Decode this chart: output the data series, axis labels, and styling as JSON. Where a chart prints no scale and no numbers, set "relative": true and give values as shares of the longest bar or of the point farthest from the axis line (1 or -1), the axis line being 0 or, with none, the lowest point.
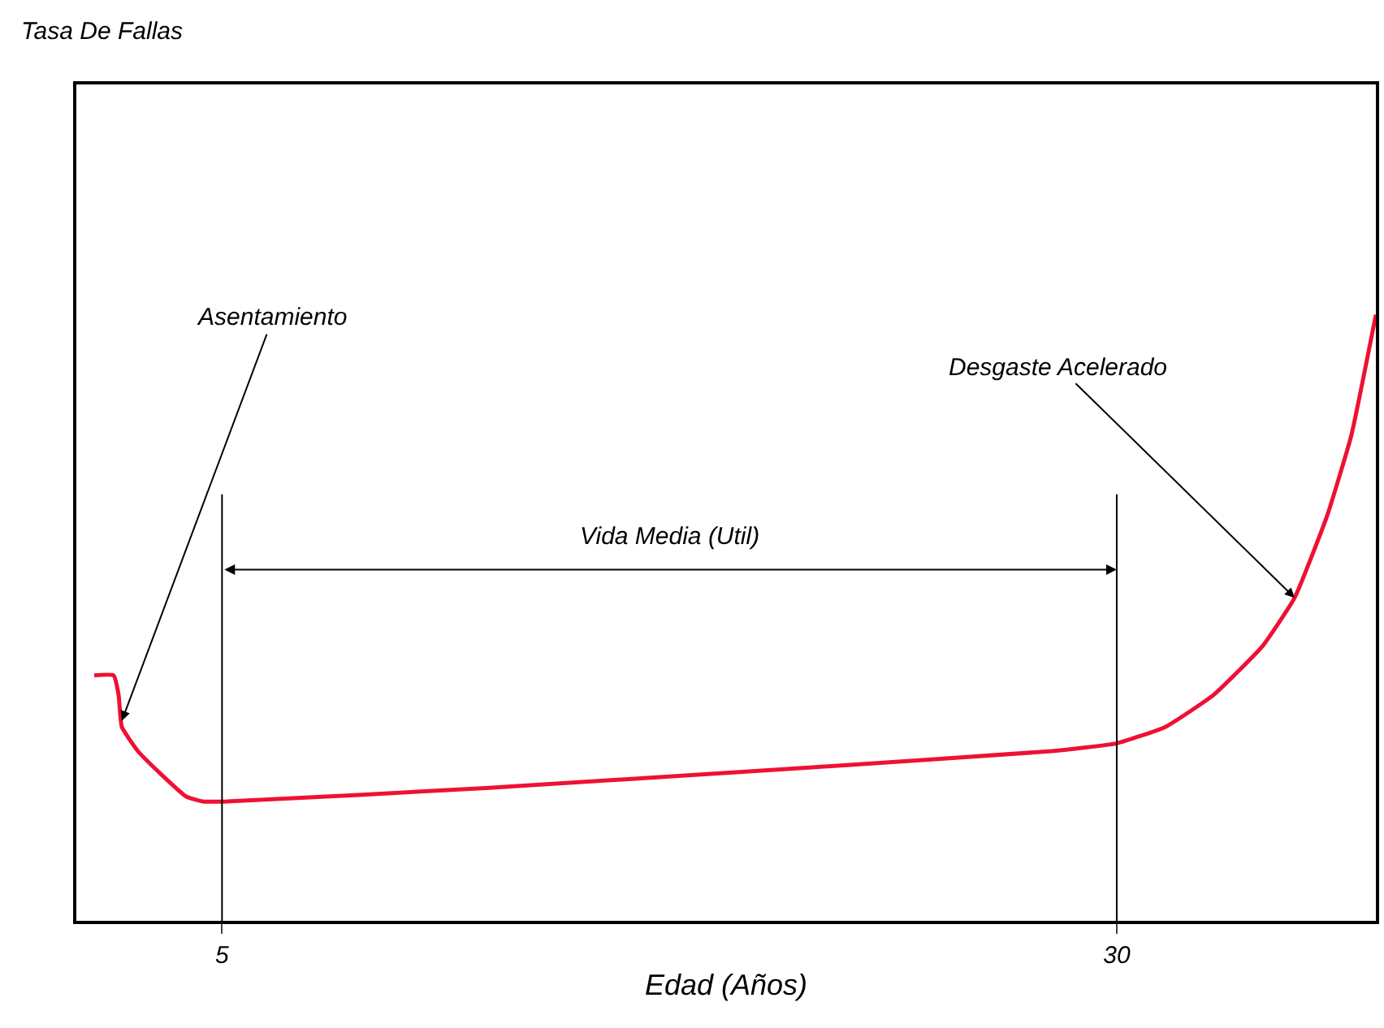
{
  "chart_data": {
    "type": "line",
    "relative": true,
    "xlabel": "Edad (Años)",
    "x": [
      1.43,
      1.97,
      2.11,
      2.2,
      2.65,
      3.33,
      4.0,
      4.46,
      5.14,
      12.37,
      21.41,
      28.19,
      30.0,
      31.36,
      32.71,
      34.07,
      34.97,
      35.87,
      36.55,
      37.24
    ],
    "series": [
      {
        "color": "#ee1133",
        "values": [
          0.405,
          0.405,
          0.373,
          0.32,
          0.28,
          0.24,
          0.205,
          0.197,
          0.197,
          0.219,
          0.253,
          0.28,
          0.293,
          0.32,
          0.373,
          0.453,
          0.533,
          0.667,
          0.8,
          1.0
        ]
      }
    ],
    "xlim": [
      0.93,
      37.24
    ],
    "xticks": [
      5,
      30
    ],
    "annotations": [
      "Tasa De Fallas",
      {
        "text": "Asentamiento",
        "x": 2.2,
        "y": 0.33
      },
      {
        "text": "Desgaste Acelerado",
        "x": 34.97,
        "y": 0.533
      },
      "Vida Media (Util)"
    ],
    "ref_lines": [
      {
        "axis": "x",
        "value": 5,
        "color": "#000000"
      },
      {
        "axis": "x",
        "value": 30,
        "color": "#000000"
      }
    ],
    "legend": false,
    "marker": "none",
    "line_style": "solid"
  }
}
